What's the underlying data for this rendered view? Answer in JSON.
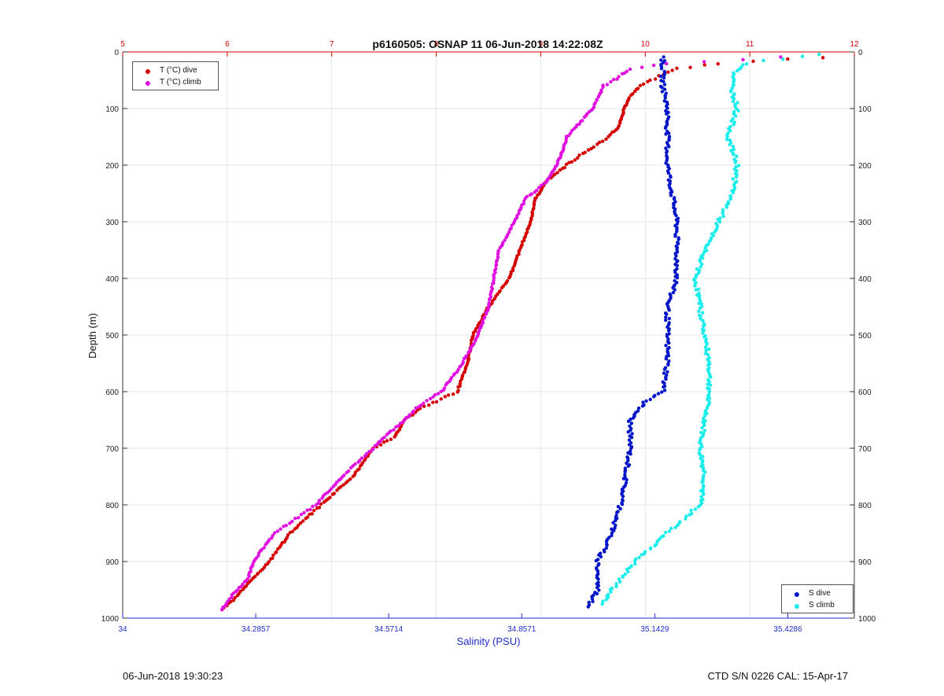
{
  "chart_data": {
    "type": "scatter",
    "title": "p6160505: OSNAP 11 06-Jun-2018 14:22:08Z",
    "ylabel": "Depth (m)",
    "xlabel_bottom": "Salinity (PSU)",
    "xlabel_top": "",
    "y_range": [
      0,
      1000
    ],
    "y_reversed": true,
    "y_ticks": [
      "0",
      "100",
      "200",
      "300",
      "400",
      "500",
      "600",
      "700",
      "800",
      "900",
      "1000"
    ],
    "x_bottom_range": [
      34,
      35.5714
    ],
    "x_bottom_ticks": [
      "34",
      "34.2857",
      "34.5714",
      "34.8571",
      "35.1429",
      "35.4286"
    ],
    "x_top_range": [
      5,
      12
    ],
    "x_top_ticks": [
      "5",
      "6",
      "7",
      "8",
      "9",
      "10",
      "11",
      "12"
    ],
    "grid": true,
    "legend_temperature": [
      "T (°C) dive",
      "T (°C) climb"
    ],
    "legend_salinity": [
      "S dive",
      "S climb"
    ],
    "legend_temperature_placement": "top-left",
    "legend_salinity_placement": "bottom-right",
    "colors": {
      "t_dive": "#d40000",
      "t_climb": "#e010e0",
      "s_dive": "#0014c8",
      "s_climb": "#19ecec",
      "bottom_axis": "#1f2fc8",
      "top_axis": "#d40000"
    },
    "series": [
      {
        "name": "T (°C) dive",
        "axis": "top",
        "depth": [
          10,
          20,
          30,
          50,
          60,
          80,
          100,
          130,
          150,
          180,
          200,
          230,
          260,
          300,
          350,
          400,
          450,
          500,
          550,
          600,
          630,
          650,
          680,
          700,
          750,
          800,
          850,
          900,
          930,
          960,
          985
        ],
        "values": [
          11.7,
          10.7,
          10.3,
          10.05,
          9.95,
          9.85,
          9.8,
          9.75,
          9.65,
          9.4,
          9.25,
          9.05,
          8.95,
          8.9,
          8.8,
          8.7,
          8.5,
          8.35,
          8.3,
          8.2,
          7.85,
          7.7,
          7.6,
          7.4,
          7.2,
          6.9,
          6.6,
          6.4,
          6.25,
          6.1,
          5.95
        ]
      },
      {
        "name": "T (°C) climb",
        "axis": "top",
        "depth": [
          10,
          20,
          30,
          50,
          60,
          80,
          100,
          130,
          150,
          180,
          200,
          230,
          260,
          300,
          350,
          400,
          450,
          500,
          550,
          600,
          630,
          650,
          680,
          700,
          750,
          800,
          850,
          900,
          930,
          960,
          985
        ],
        "values": [
          11.3,
          10.2,
          9.85,
          9.7,
          9.6,
          9.55,
          9.5,
          9.35,
          9.25,
          9.2,
          9.15,
          9.05,
          8.85,
          8.75,
          8.6,
          8.55,
          8.5,
          8.4,
          8.25,
          8.05,
          7.8,
          7.7,
          7.5,
          7.4,
          7.1,
          6.85,
          6.45,
          6.25,
          6.2,
          6.05,
          5.95
        ]
      },
      {
        "name": "S dive",
        "axis": "bottom",
        "depth": [
          10,
          30,
          60,
          100,
          150,
          200,
          250,
          300,
          350,
          400,
          450,
          500,
          550,
          600,
          620,
          650,
          700,
          750,
          800,
          850,
          900,
          950,
          980
        ],
        "values": [
          35.16,
          35.16,
          35.16,
          35.17,
          35.17,
          35.17,
          35.18,
          35.19,
          35.19,
          35.19,
          35.17,
          35.17,
          35.17,
          35.16,
          35.12,
          35.09,
          35.09,
          35.08,
          35.07,
          35.05,
          35.02,
          35.02,
          35.0
        ]
      },
      {
        "name": "S climb",
        "axis": "bottom",
        "depth": [
          5,
          20,
          40,
          70,
          100,
          150,
          200,
          250,
          300,
          350,
          400,
          450,
          500,
          550,
          600,
          650,
          700,
          750,
          800,
          850,
          900,
          950,
          975
        ],
        "values": [
          35.5,
          35.34,
          35.31,
          35.31,
          35.32,
          35.3,
          35.32,
          35.31,
          35.28,
          35.25,
          35.23,
          35.24,
          35.25,
          35.26,
          35.26,
          35.25,
          35.24,
          35.25,
          35.24,
          35.17,
          35.1,
          35.05,
          35.03
        ]
      }
    ]
  },
  "footer": {
    "timestamp": "06-Jun-2018 19:30:23",
    "instrument": "CTD S/N 0226  CAL: 15-Apr-17"
  }
}
